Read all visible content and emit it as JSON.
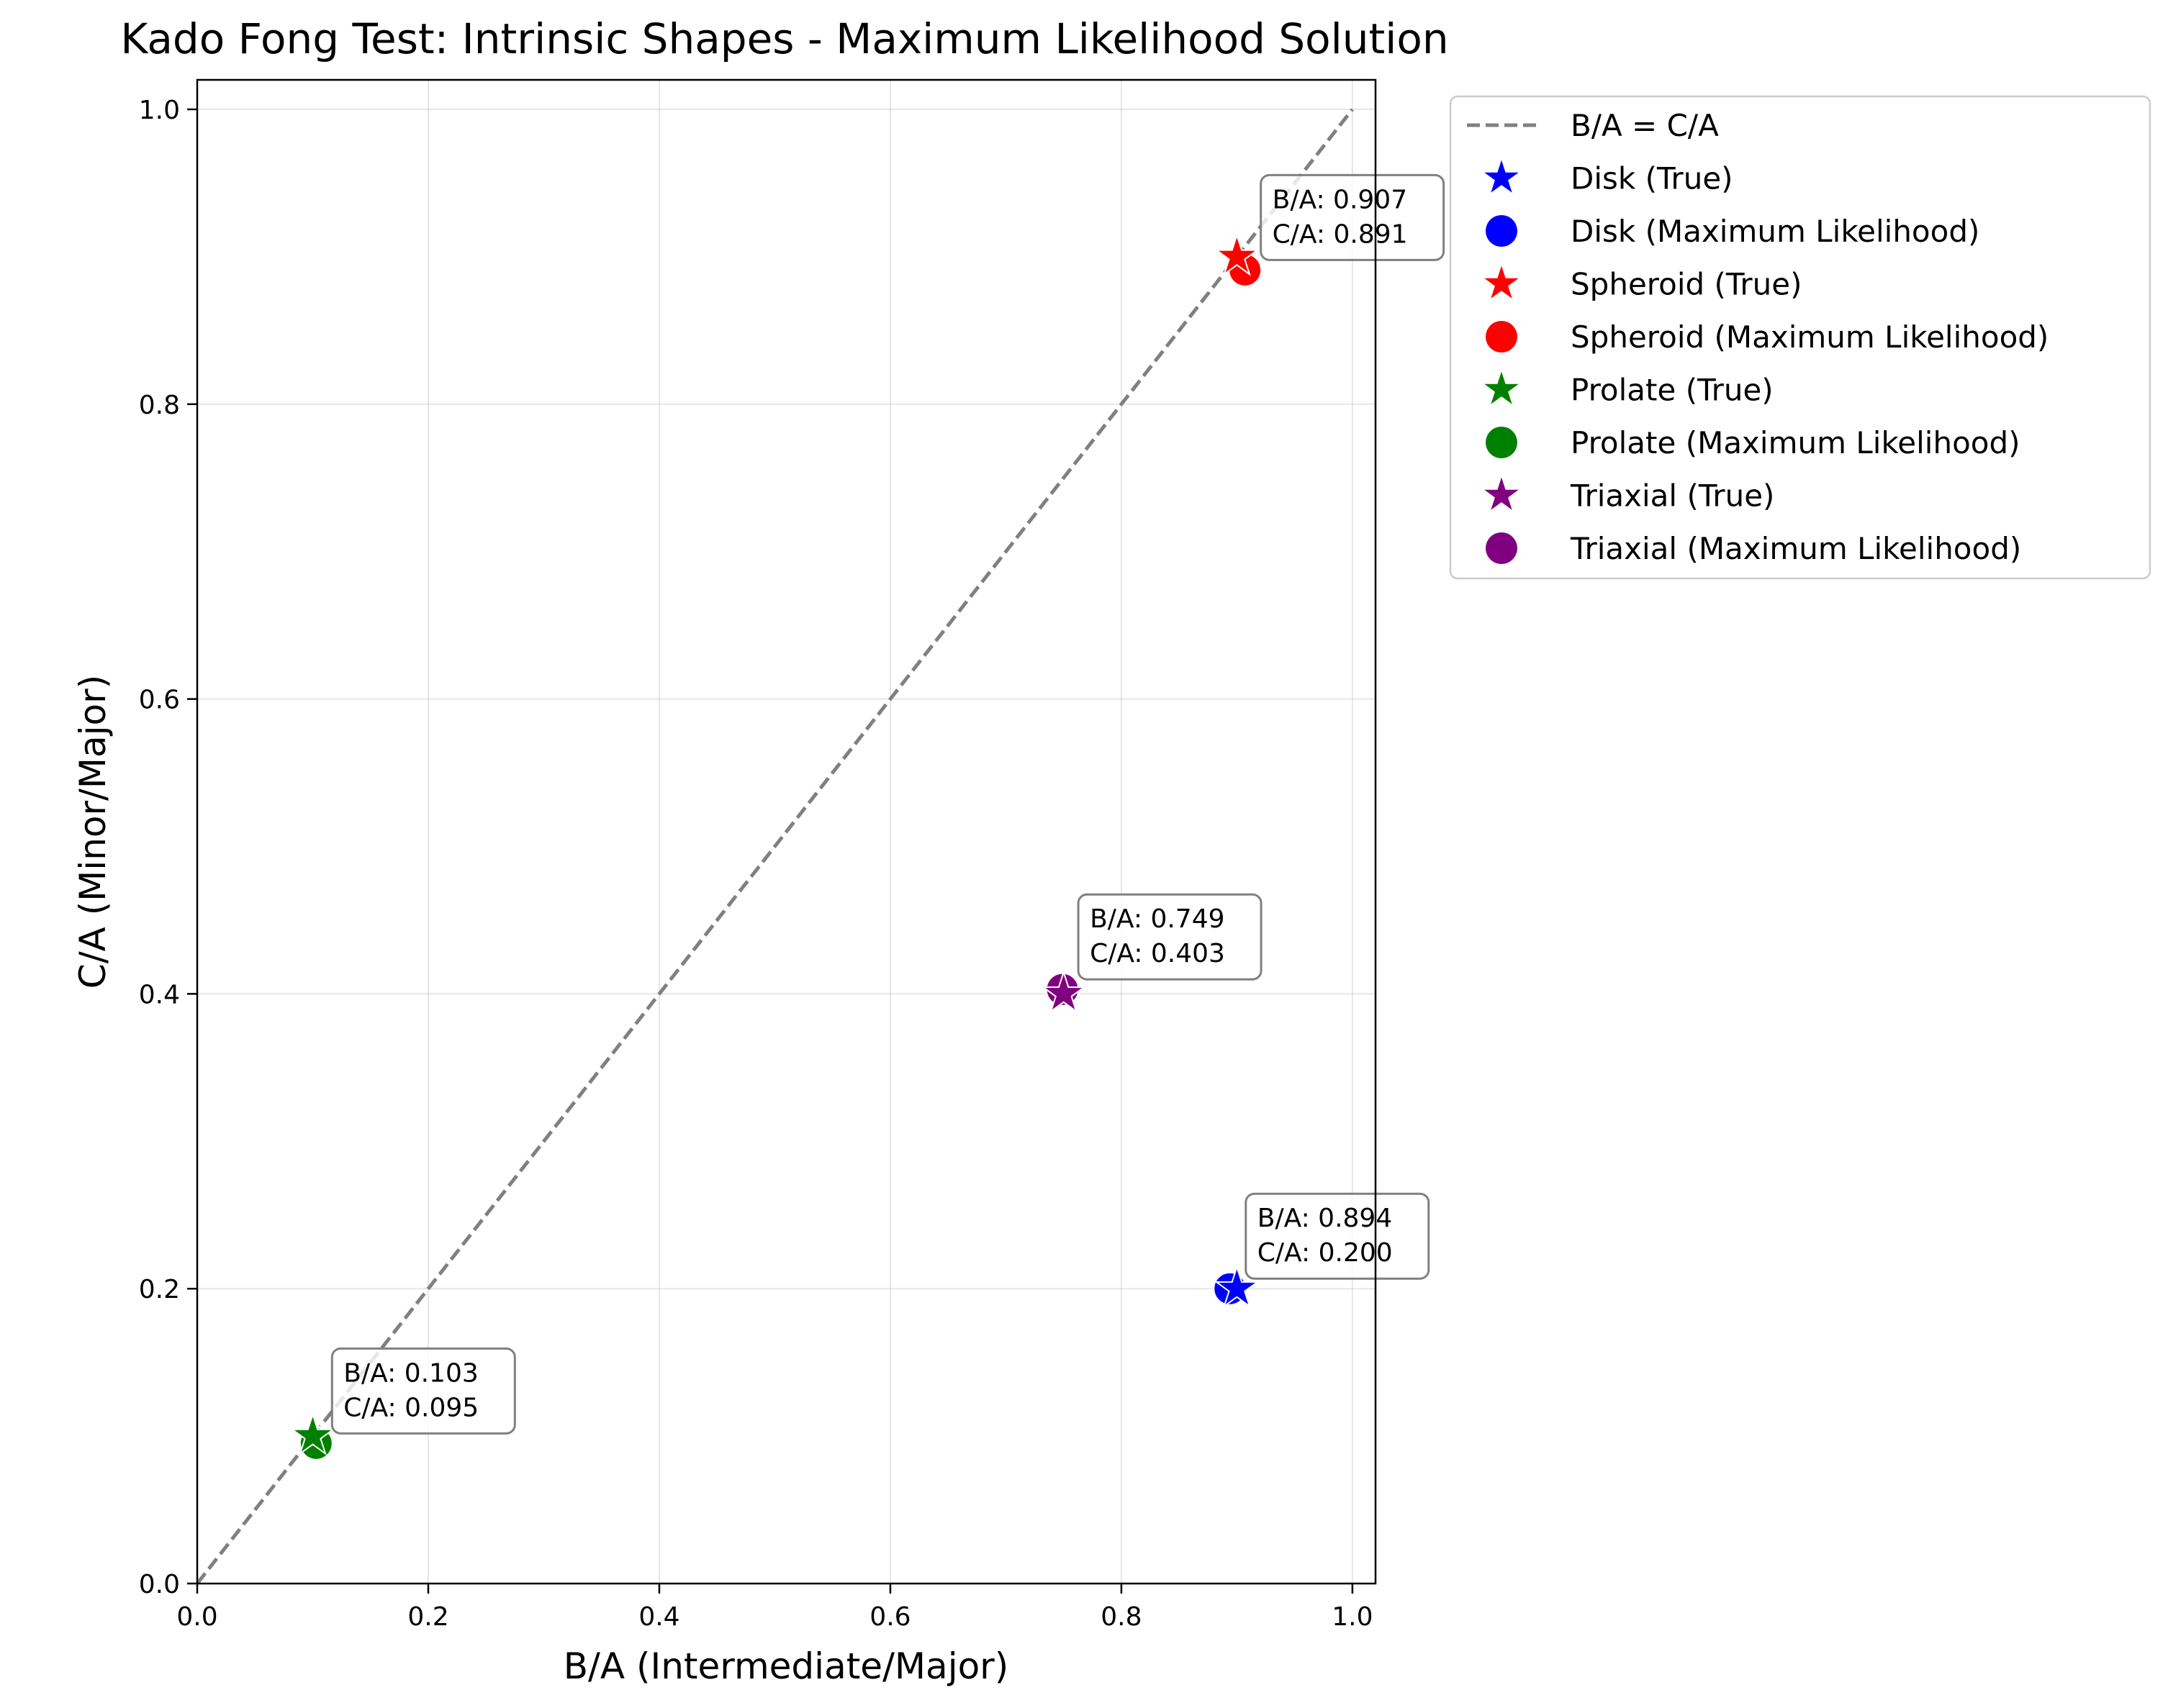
{
  "chart_data": {
    "type": "scatter",
    "title": "Kado Fong Test: Intrinsic Shapes - Maximum Likelihood Solution",
    "xlabel": "B/A (Intermediate/Major)",
    "ylabel": "C/A (Minor/Major)",
    "xlim": [
      0.0,
      1.02
    ],
    "ylim": [
      0.0,
      1.02
    ],
    "xticks": [
      "0.0",
      "0.2",
      "0.4",
      "0.6",
      "0.8",
      "1.0"
    ],
    "yticks": [
      "0.0",
      "0.2",
      "0.4",
      "0.6",
      "0.8",
      "1.0"
    ],
    "grid": true,
    "legend_position": "outside right, top",
    "reference_line": {
      "label": "B/A = C/A",
      "x": [
        0,
        1
      ],
      "y": [
        0,
        1
      ],
      "color": "#808080",
      "style": "dashed"
    },
    "series": [
      {
        "name": "Disk",
        "color": "#0000ff",
        "true": {
          "label": "Disk (True)",
          "x": 0.9,
          "y": 0.2
        },
        "ml": {
          "label": "Disk (Maximum Likelihood)",
          "x": 0.894,
          "y": 0.2
        },
        "annotation": [
          "B/A: 0.894",
          "C/A: 0.200"
        ]
      },
      {
        "name": "Spheroid",
        "color": "#ff0000",
        "true": {
          "label": "Spheroid (True)",
          "x": 0.9,
          "y": 0.9
        },
        "ml": {
          "label": "Spheroid (Maximum Likelihood)",
          "x": 0.907,
          "y": 0.891
        },
        "annotation": [
          "B/A: 0.907",
          "C/A: 0.891"
        ]
      },
      {
        "name": "Prolate",
        "color": "#008000",
        "true": {
          "label": "Prolate (True)",
          "x": 0.1,
          "y": 0.1
        },
        "ml": {
          "label": "Prolate (Maximum Likelihood)",
          "x": 0.103,
          "y": 0.095
        },
        "annotation": [
          "B/A: 0.103",
          "C/A: 0.095"
        ]
      },
      {
        "name": "Triaxial",
        "color": "#800080",
        "true": {
          "label": "Triaxial (True)",
          "x": 0.75,
          "y": 0.4
        },
        "ml": {
          "label": "Triaxial (Maximum Likelihood)",
          "x": 0.749,
          "y": 0.403
        },
        "annotation": [
          "B/A: 0.749",
          "C/A: 0.403"
        ]
      }
    ]
  }
}
